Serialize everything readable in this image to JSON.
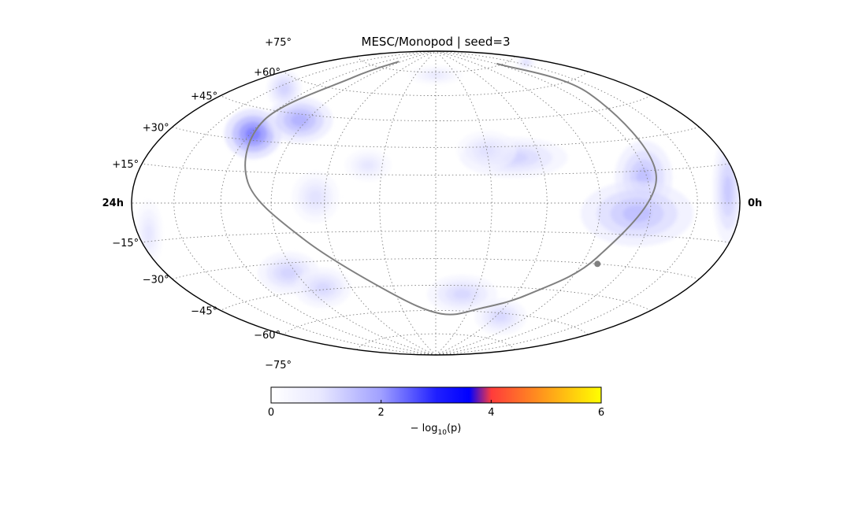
{
  "title": "MESC/Monopod | seed=3",
  "colors": {
    "background": "#ffffff",
    "outline": "#000000",
    "grid": "#808080",
    "galactic_plane": "#808080",
    "colormap_stops": [
      "#ffffff",
      "#aaaaff",
      "#0000ff",
      "#ff3333",
      "#ff9900",
      "#ffff00"
    ]
  },
  "projection": "hammer-aitoff",
  "ra_labels": {
    "left": "24h",
    "right": "0h"
  },
  "lat_labels": [
    {
      "text": "+75°",
      "lat": 75
    },
    {
      "text": "+60°",
      "lat": 60
    },
    {
      "text": "+45°",
      "lat": 45
    },
    {
      "text": "+30°",
      "lat": 30
    },
    {
      "text": "+15°",
      "lat": 15
    },
    {
      "text": "−15°",
      "lat": -15
    },
    {
      "text": "−30°",
      "lat": -30
    },
    {
      "text": "−45°",
      "lat": -45
    },
    {
      "text": "−60°",
      "lat": -60
    },
    {
      "text": "−75°",
      "lat": -75
    }
  ],
  "grid": {
    "lat_step_deg": 15,
    "lon_step_deg": 30
  },
  "colorbar": {
    "label": "− log10(p)",
    "label_main": "− log",
    "label_sub": "10",
    "label_arg": "(p)",
    "min": 0,
    "max": 6,
    "ticks": [
      {
        "value": 0,
        "label": "0"
      },
      {
        "value": 2,
        "label": "2"
      },
      {
        "value": 4,
        "label": "4"
      },
      {
        "value": 6,
        "label": "6"
      }
    ]
  },
  "hotspots": [
    {
      "lon": 118,
      "lat": 33,
      "sig_lon": 10,
      "sig_lat": 6,
      "value": 2.6
    },
    {
      "lon": 95,
      "lat": 42,
      "sig_lon": 12,
      "sig_lat": 6,
      "value": 1.6
    },
    {
      "lon": 142,
      "lat": 55,
      "sig_lon": 12,
      "sig_lat": 6,
      "value": 0.9
    },
    {
      "lon": -118,
      "lat": 12,
      "sig_lon": 8,
      "sig_lat": 8,
      "value": 1.3
    },
    {
      "lon": -112,
      "lat": -5,
      "sig_lon": 15,
      "sig_lat": 7,
      "value": 1.3
    },
    {
      "lon": -172,
      "lat": 5,
      "sig_lon": 5,
      "sig_lat": 10,
      "value": 1.1
    },
    {
      "lon": -45,
      "lat": 24,
      "sig_lon": 14,
      "sig_lat": 5,
      "value": 0.9
    },
    {
      "lon": 95,
      "lat": -35,
      "sig_lon": 10,
      "sig_lat": 5,
      "value": 0.9
    },
    {
      "lon": 80,
      "lat": -44,
      "sig_lon": 10,
      "sig_lat": 5,
      "value": 0.8
    },
    {
      "lon": 65,
      "lat": 3,
      "sig_lon": 6,
      "sig_lat": 6,
      "value": 0.6
    },
    {
      "lon": -20,
      "lat": -50,
      "sig_lon": 12,
      "sig_lat": 5,
      "value": 0.8
    },
    {
      "lon": -65,
      "lat": -62,
      "sig_lon": 12,
      "sig_lat": 5,
      "value": 0.8
    },
    {
      "lon": -160,
      "lat": 72,
      "sig_lon": 14,
      "sig_lat": 4,
      "value": 0.6
    },
    {
      "lon": 38,
      "lat": 20,
      "sig_lon": 6,
      "sig_lat": 4,
      "value": 0.5
    },
    {
      "lon": 0,
      "lat": 73,
      "sig_lon": 18,
      "sig_lat": 3,
      "value": 0.4
    },
    {
      "lon": 172,
      "lat": -12,
      "sig_lon": 5,
      "sig_lat": 6,
      "value": 0.5
    },
    {
      "lon": -30,
      "lat": 28,
      "sig_lon": 8,
      "sig_lat": 5,
      "value": 0.6
    }
  ],
  "galactic_plane_points": [
    {
      "lon": -122,
      "lat": 76
    },
    {
      "lon": -136,
      "lat": 53
    },
    {
      "lon": -126,
      "lat": 12
    },
    {
      "lon": -97,
      "lat": -27
    },
    {
      "lon": -70,
      "lat": -48
    },
    {
      "lon": -40,
      "lat": -58
    },
    {
      "lon": -5,
      "lat": -62
    },
    {
      "lon": 35,
      "lat": -48
    },
    {
      "lon": 75,
      "lat": -18
    },
    {
      "lon": 105,
      "lat": 10
    },
    {
      "lon": 120,
      "lat": 40
    },
    {
      "lon": 103,
      "lat": 67
    },
    {
      "lon": 95,
      "lat": 80
    }
  ],
  "galactic_center": {
    "lon": -100,
    "lat": -30
  }
}
